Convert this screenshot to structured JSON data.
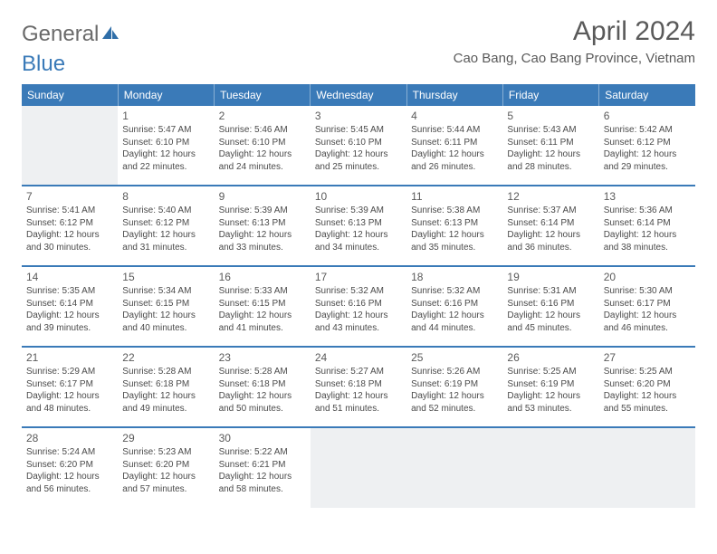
{
  "logo": {
    "part1": "General",
    "part2": "Blue"
  },
  "title": "April 2024",
  "location": "Cao Bang, Cao Bang Province, Vietnam",
  "colors": {
    "header_bg": "#3a7ab8",
    "header_text": "#ffffff",
    "empty_bg": "#eef0f2",
    "rule": "#3a7ab8",
    "logo_accent": "#2f6ea8"
  },
  "weekdays": [
    "Sunday",
    "Monday",
    "Tuesday",
    "Wednesday",
    "Thursday",
    "Friday",
    "Saturday"
  ],
  "weeks": [
    [
      {
        "blank": true
      },
      {
        "d": "1",
        "sr": "5:47 AM",
        "ss": "6:10 PM",
        "dl": "12 hours and 22 minutes."
      },
      {
        "d": "2",
        "sr": "5:46 AM",
        "ss": "6:10 PM",
        "dl": "12 hours and 24 minutes."
      },
      {
        "d": "3",
        "sr": "5:45 AM",
        "ss": "6:10 PM",
        "dl": "12 hours and 25 minutes."
      },
      {
        "d": "4",
        "sr": "5:44 AM",
        "ss": "6:11 PM",
        "dl": "12 hours and 26 minutes."
      },
      {
        "d": "5",
        "sr": "5:43 AM",
        "ss": "6:11 PM",
        "dl": "12 hours and 28 minutes."
      },
      {
        "d": "6",
        "sr": "5:42 AM",
        "ss": "6:12 PM",
        "dl": "12 hours and 29 minutes."
      }
    ],
    [
      {
        "d": "7",
        "sr": "5:41 AM",
        "ss": "6:12 PM",
        "dl": "12 hours and 30 minutes."
      },
      {
        "d": "8",
        "sr": "5:40 AM",
        "ss": "6:12 PM",
        "dl": "12 hours and 31 minutes."
      },
      {
        "d": "9",
        "sr": "5:39 AM",
        "ss": "6:13 PM",
        "dl": "12 hours and 33 minutes."
      },
      {
        "d": "10",
        "sr": "5:39 AM",
        "ss": "6:13 PM",
        "dl": "12 hours and 34 minutes."
      },
      {
        "d": "11",
        "sr": "5:38 AM",
        "ss": "6:13 PM",
        "dl": "12 hours and 35 minutes."
      },
      {
        "d": "12",
        "sr": "5:37 AM",
        "ss": "6:14 PM",
        "dl": "12 hours and 36 minutes."
      },
      {
        "d": "13",
        "sr": "5:36 AM",
        "ss": "6:14 PM",
        "dl": "12 hours and 38 minutes."
      }
    ],
    [
      {
        "d": "14",
        "sr": "5:35 AM",
        "ss": "6:14 PM",
        "dl": "12 hours and 39 minutes."
      },
      {
        "d": "15",
        "sr": "5:34 AM",
        "ss": "6:15 PM",
        "dl": "12 hours and 40 minutes."
      },
      {
        "d": "16",
        "sr": "5:33 AM",
        "ss": "6:15 PM",
        "dl": "12 hours and 41 minutes."
      },
      {
        "d": "17",
        "sr": "5:32 AM",
        "ss": "6:16 PM",
        "dl": "12 hours and 43 minutes."
      },
      {
        "d": "18",
        "sr": "5:32 AM",
        "ss": "6:16 PM",
        "dl": "12 hours and 44 minutes."
      },
      {
        "d": "19",
        "sr": "5:31 AM",
        "ss": "6:16 PM",
        "dl": "12 hours and 45 minutes."
      },
      {
        "d": "20",
        "sr": "5:30 AM",
        "ss": "6:17 PM",
        "dl": "12 hours and 46 minutes."
      }
    ],
    [
      {
        "d": "21",
        "sr": "5:29 AM",
        "ss": "6:17 PM",
        "dl": "12 hours and 48 minutes."
      },
      {
        "d": "22",
        "sr": "5:28 AM",
        "ss": "6:18 PM",
        "dl": "12 hours and 49 minutes."
      },
      {
        "d": "23",
        "sr": "5:28 AM",
        "ss": "6:18 PM",
        "dl": "12 hours and 50 minutes."
      },
      {
        "d": "24",
        "sr": "5:27 AM",
        "ss": "6:18 PM",
        "dl": "12 hours and 51 minutes."
      },
      {
        "d": "25",
        "sr": "5:26 AM",
        "ss": "6:19 PM",
        "dl": "12 hours and 52 minutes."
      },
      {
        "d": "26",
        "sr": "5:25 AM",
        "ss": "6:19 PM",
        "dl": "12 hours and 53 minutes."
      },
      {
        "d": "27",
        "sr": "5:25 AM",
        "ss": "6:20 PM",
        "dl": "12 hours and 55 minutes."
      }
    ],
    [
      {
        "d": "28",
        "sr": "5:24 AM",
        "ss": "6:20 PM",
        "dl": "12 hours and 56 minutes."
      },
      {
        "d": "29",
        "sr": "5:23 AM",
        "ss": "6:20 PM",
        "dl": "12 hours and 57 minutes."
      },
      {
        "d": "30",
        "sr": "5:22 AM",
        "ss": "6:21 PM",
        "dl": "12 hours and 58 minutes."
      },
      {
        "blank": true
      },
      {
        "blank": true
      },
      {
        "blank": true
      },
      {
        "blank": true
      }
    ]
  ],
  "labels": {
    "sunrise": "Sunrise:",
    "sunset": "Sunset:",
    "daylight": "Daylight:"
  }
}
